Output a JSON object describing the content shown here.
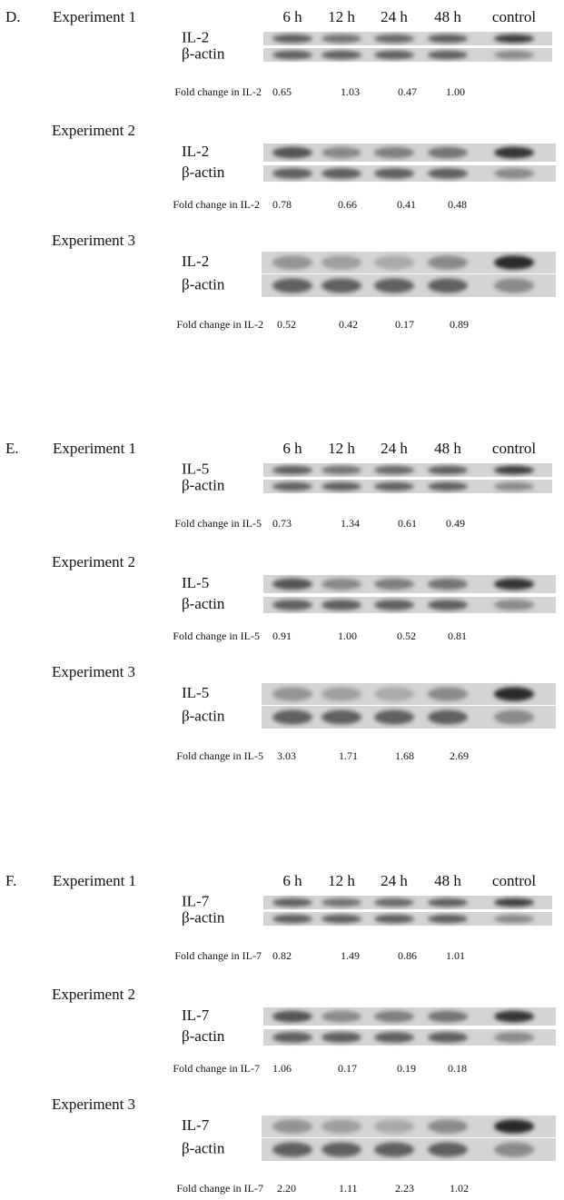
{
  "panels": [
    {
      "label": "D.",
      "time_points": [
        "6 h",
        "12 h",
        "24 h",
        "48 h",
        "control"
      ],
      "experiments": [
        {
          "name": "Experiment 1",
          "bands": [
            "IL-2",
            "β-actin"
          ],
          "fold_change_label": "Fold change in IL-2",
          "fold_changes": [
            "0.65",
            "1.03",
            "0.47",
            "1.00"
          ]
        },
        {
          "name": "Experiment 2",
          "bands": [
            "IL-2",
            "β-actin"
          ],
          "fold_change_label": "Fold change in IL-2",
          "fold_changes": [
            "0.78",
            "0.66",
            "0.41",
            "0.48"
          ]
        },
        {
          "name": "Experiment 3",
          "bands": [
            "IL-2",
            "β-actin"
          ],
          "fold_change_label": "Fold change in IL-2",
          "fold_changes": [
            "0.52",
            "0.42",
            "0.17",
            "0.89"
          ]
        }
      ]
    },
    {
      "label": "E.",
      "time_points": [
        "6 h",
        "12 h",
        "24 h",
        "48 h",
        "control"
      ],
      "experiments": [
        {
          "name": "Experiment 1",
          "bands": [
            "IL-5",
            "β-actin"
          ],
          "fold_change_label": "Fold change in IL-5",
          "fold_changes": [
            "0.73",
            "1.34",
            "0.61",
            "0.49"
          ]
        },
        {
          "name": "Experiment 2",
          "bands": [
            "IL-5",
            "β-actin"
          ],
          "fold_change_label": "Fold change in IL-5",
          "fold_changes": [
            "0.91",
            "1.00",
            "0.52",
            "0.81"
          ]
        },
        {
          "name": "Experiment 3",
          "bands": [
            "IL-5",
            "β-actin"
          ],
          "fold_change_label": "Fold change in IL-5",
          "fold_changes": [
            "3.03",
            "1.71",
            "1.68",
            "2.69"
          ]
        }
      ]
    },
    {
      "label": "F.",
      "time_points": [
        "6 h",
        "12 h",
        "24 h",
        "48 h",
        "control"
      ],
      "experiments": [
        {
          "name": "Experiment 1",
          "bands": [
            "IL-7",
            "β-actin"
          ],
          "fold_change_label": "Fold change in IL-7",
          "fold_changes": [
            "0.82",
            "1.49",
            "0.86",
            "1.01"
          ]
        },
        {
          "name": "Experiment 2",
          "bands": [
            "IL-7",
            "β-actin"
          ],
          "fold_change_label": "Fold change in IL-7",
          "fold_changes": [
            "1.06",
            "0.17",
            "0.19",
            "0.18"
          ]
        },
        {
          "name": "Experiment 3",
          "bands": [
            "IL-7",
            "β-actin"
          ],
          "fold_change_label": "Fold change in IL-7",
          "fold_changes": [
            "2.20",
            "1.11",
            "2.23",
            "1.02"
          ]
        }
      ]
    }
  ]
}
